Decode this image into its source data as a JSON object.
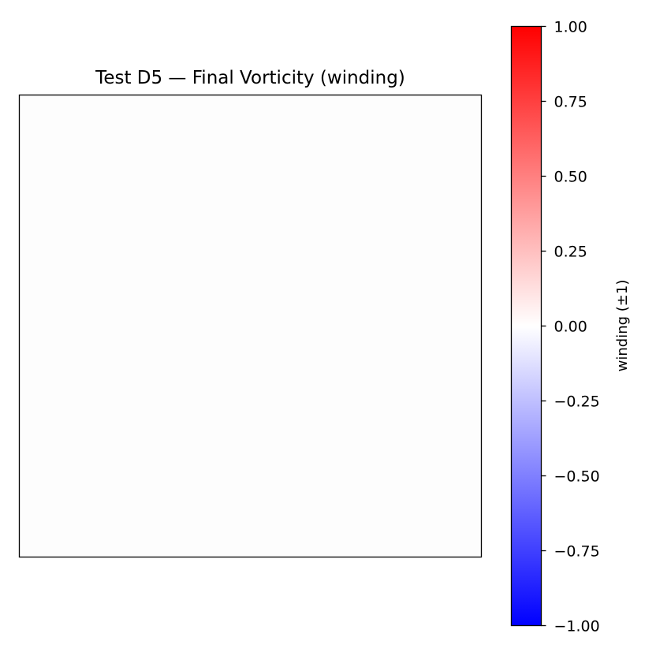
{
  "chart_data": [
    {
      "type": "heatmap",
      "title": "Test D5 — Final Vorticity (winding)",
      "xlabel": "",
      "ylabel": "",
      "axes_visible": false,
      "grid": false,
      "field": {
        "description": "uniform field",
        "value": 0.0
      },
      "colorbar": {
        "label": "winding (±1)",
        "colormap": "bwr",
        "vmin": -1.0,
        "vmax": 1.0,
        "ticks": [
          1.0,
          0.75,
          0.5,
          0.25,
          0.0,
          -0.25,
          -0.5,
          -0.75,
          -1.0
        ],
        "tick_labels": [
          "1.00",
          "0.75",
          "0.50",
          "0.25",
          "0.00",
          "−0.25",
          "−0.50",
          "−0.75",
          "−1.00"
        ],
        "placement": "right"
      }
    }
  ],
  "colors": {
    "field_fill": "#fdfdfd",
    "cmap_low": "#0000ff",
    "cmap_mid": "#ffffff",
    "cmap_high": "#ff0000",
    "frame": "#000000"
  }
}
